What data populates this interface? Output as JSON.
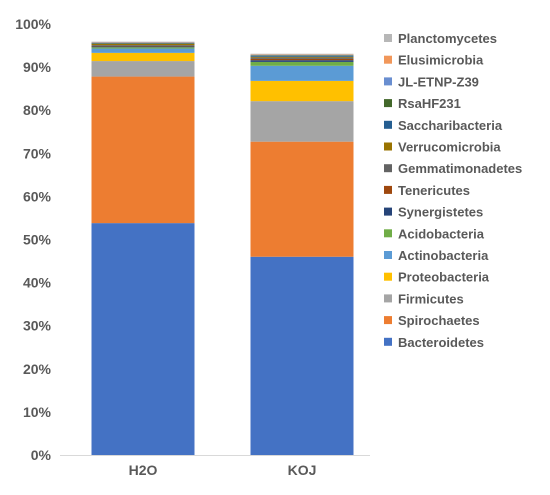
{
  "chart_data": {
    "type": "bar",
    "stacked": true,
    "categories": [
      "H2O",
      "KOJ"
    ],
    "ylim": [
      0,
      100
    ],
    "y_tick_labels": [
      "0%",
      "10%",
      "20%",
      "30%",
      "40%",
      "50%",
      "60%",
      "70%",
      "80%",
      "90%",
      "100%"
    ],
    "grid": false,
    "legend_position": "right",
    "series": [
      {
        "name": "Bacteroidetes",
        "color": "#4472C4",
        "values": [
          53.8,
          46.0
        ]
      },
      {
        "name": "Spirochaetes",
        "color": "#ED7D31",
        "values": [
          34.0,
          26.7
        ]
      },
      {
        "name": "Firmicutes",
        "color": "#A5A5A5",
        "values": [
          3.6,
          9.4
        ]
      },
      {
        "name": "Proteobacteria",
        "color": "#FFC000",
        "values": [
          1.9,
          4.7
        ]
      },
      {
        "name": "Actinobacteria",
        "color": "#5B9BD5",
        "values": [
          1.0,
          3.5
        ]
      },
      {
        "name": "Acidobacteria",
        "color": "#70AD47",
        "values": [
          0.3,
          0.9
        ]
      },
      {
        "name": "Synergistetes",
        "color": "#264478",
        "values": [
          0.2,
          0.4
        ]
      },
      {
        "name": "Tenericutes",
        "color": "#9E480E",
        "values": [
          0.1,
          0.3
        ]
      },
      {
        "name": "Gemmatimonadetes",
        "color": "#636363",
        "values": [
          0.2,
          0.3
        ]
      },
      {
        "name": "Verrucomicrobia",
        "color": "#997300",
        "values": [
          0.3,
          0.2
        ]
      },
      {
        "name": "Saccharibacteria",
        "color": "#255E91",
        "values": [
          0.1,
          0.2
        ]
      },
      {
        "name": "RsaHF231",
        "color": "#43682B",
        "values": [
          0.1,
          0.1
        ]
      },
      {
        "name": "JL-ETNP-Z39",
        "color": "#698ED0",
        "values": [
          0.1,
          0.1
        ]
      },
      {
        "name": "Elusimicrobia",
        "color": "#F1975A",
        "values": [
          0.1,
          0.1
        ]
      },
      {
        "name": "Planctomycetes",
        "color": "#B7B7B7",
        "values": [
          0.1,
          0.2
        ]
      }
    ]
  }
}
